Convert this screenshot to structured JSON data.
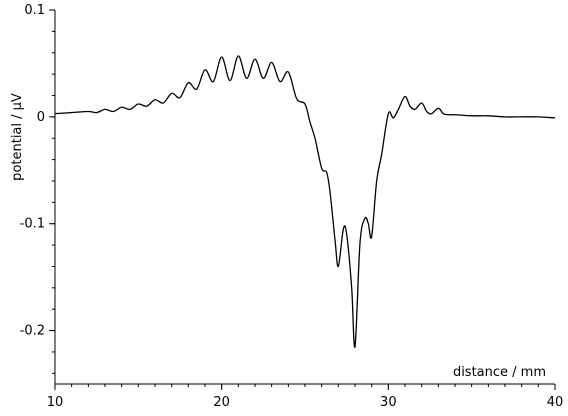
{
  "chart_data": {
    "type": "line",
    "title": "",
    "xlabel": "distance / mm",
    "ylabel": "potential / µV",
    "xlim": [
      10,
      40
    ],
    "ylim": [
      -0.25,
      0.1
    ],
    "grid": false,
    "x_ticks": [
      10,
      20,
      30,
      40
    ],
    "x_tick_labels": [
      "10",
      "20",
      "30",
      "40"
    ],
    "x_minor_step": 1,
    "y_ticks": [
      0.1,
      0,
      -0.1,
      -0.2
    ],
    "y_tick_labels": [
      "0.1",
      "0",
      "-0.1",
      "-0.2"
    ],
    "y_minor_step": 0.02,
    "series": [
      {
        "color": "#000000",
        "x": [
          10.0,
          11.0,
          12.0,
          12.5,
          13.0,
          13.5,
          14.0,
          14.5,
          15.0,
          15.5,
          16.0,
          16.5,
          17.0,
          17.5,
          18.0,
          18.5,
          19.0,
          19.5,
          20.0,
          20.5,
          21.0,
          21.5,
          22.0,
          22.5,
          23.0,
          23.5,
          24.0,
          24.5,
          25.0,
          25.3,
          25.6,
          26.0,
          26.3,
          26.5,
          26.8,
          27.0,
          27.3,
          27.5,
          27.8,
          28.0,
          28.3,
          28.6,
          28.8,
          29.0,
          29.3,
          29.6,
          30.0,
          30.3,
          30.6,
          31.0,
          31.3,
          31.6,
          32.0,
          32.3,
          32.6,
          33.0,
          33.3,
          33.6,
          34.0,
          35.0,
          36.0,
          37.0,
          38.0,
          39.0,
          40.0
        ],
        "y": [
          0.003,
          0.004,
          0.005,
          0.004,
          0.007,
          0.005,
          0.009,
          0.007,
          0.012,
          0.01,
          0.016,
          0.013,
          0.022,
          0.018,
          0.032,
          0.026,
          0.044,
          0.033,
          0.056,
          0.034,
          0.057,
          0.036,
          0.054,
          0.036,
          0.051,
          0.033,
          0.042,
          0.017,
          0.012,
          -0.005,
          -0.02,
          -0.048,
          -0.052,
          -0.07,
          -0.115,
          -0.14,
          -0.105,
          -0.11,
          -0.16,
          -0.215,
          -0.118,
          -0.095,
          -0.1,
          -0.112,
          -0.06,
          -0.035,
          0.003,
          -0.001,
          0.007,
          0.019,
          0.01,
          0.007,
          0.013,
          0.005,
          0.003,
          0.008,
          0.003,
          0.002,
          0.002,
          0.001,
          0.001,
          0.0,
          0.0,
          0.0,
          -0.001
        ]
      }
    ]
  }
}
